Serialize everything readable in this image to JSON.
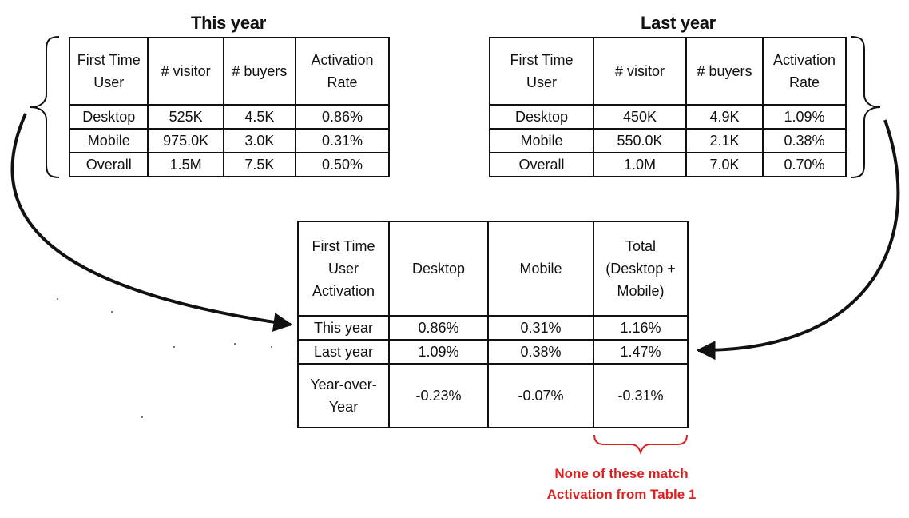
{
  "this_year": {
    "title": "This year",
    "header": [
      "First Time\nUser",
      "# visitor",
      "# buyers",
      "Activation\nRate"
    ],
    "rows": [
      [
        "Desktop",
        "525K",
        "4.5K",
        "0.86%"
      ],
      [
        "Mobile",
        "975.0K",
        "3.0K",
        "0.31%"
      ],
      [
        "Overall",
        "1.5M",
        "7.5K",
        "0.50%"
      ]
    ]
  },
  "last_year": {
    "title": "Last year",
    "header": [
      "First Time\nUser",
      "# visitor",
      "# buyers",
      "Activation\nRate"
    ],
    "rows": [
      [
        "Desktop",
        "450K",
        "4.9K",
        "1.09%"
      ],
      [
        "Mobile",
        "550.0K",
        "2.1K",
        "0.38%"
      ],
      [
        "Overall",
        "1.0M",
        "7.0K",
        "0.70%"
      ]
    ]
  },
  "comparison": {
    "header": [
      "First Time\nUser\nActivation",
      "Desktop",
      "Mobile",
      "Total\n(Desktop +\nMobile)"
    ],
    "rows": [
      [
        "This year",
        "0.86%",
        "0.31%",
        "1.16%"
      ],
      [
        "Last year",
        "1.09%",
        "0.38%",
        "1.47%"
      ]
    ],
    "yoy": [
      "Year-over-\nYear",
      "-0.23%",
      "-0.07%",
      "-0.31%"
    ]
  },
  "annotation": {
    "text": "None of these match\nActivation from Table 1",
    "color": "#e02020"
  }
}
